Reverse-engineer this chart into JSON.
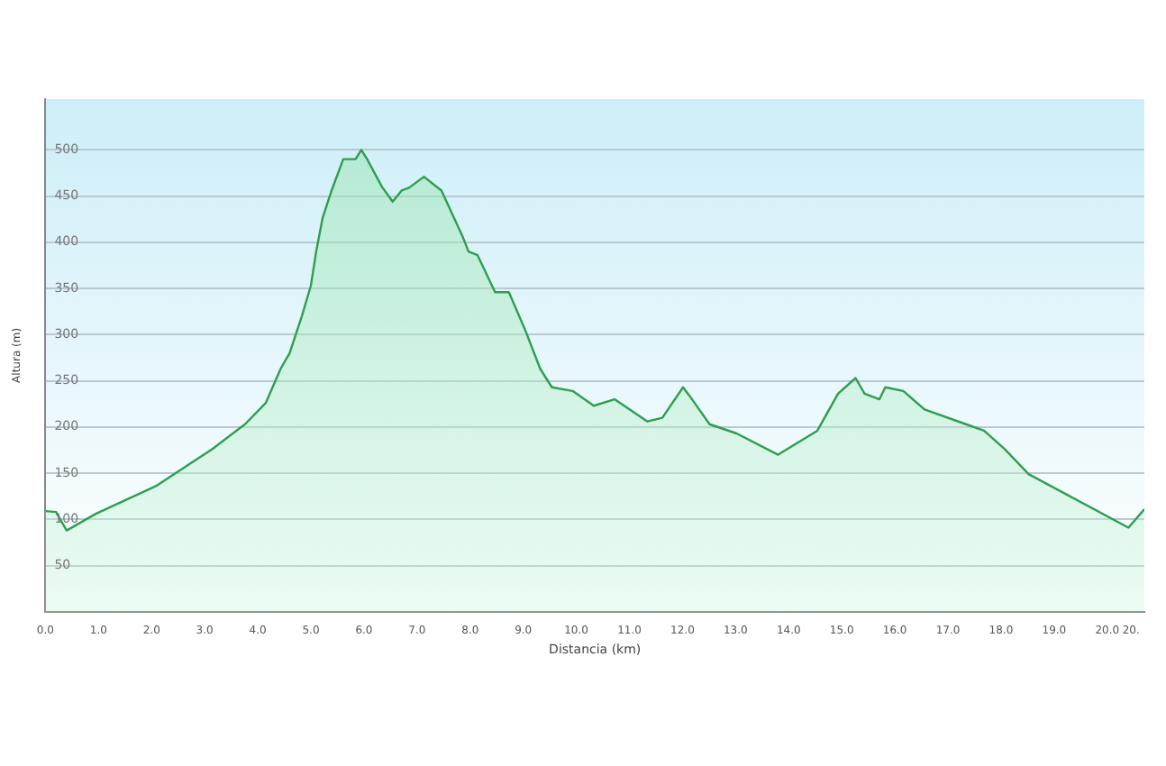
{
  "chart_data": {
    "type": "area",
    "xlabel": "Distancia (km)",
    "ylabel": "Altura (m)",
    "xlim": [
      0,
      20.7
    ],
    "xticks": [
      {
        "value": 0,
        "label": "0.0"
      },
      {
        "value": 1,
        "label": "1.0"
      },
      {
        "value": 2,
        "label": "2.0"
      },
      {
        "value": 3,
        "label": "3.0"
      },
      {
        "value": 4,
        "label": "4.0"
      },
      {
        "value": 5,
        "label": "5.0"
      },
      {
        "value": 6,
        "label": "6.0"
      },
      {
        "value": 7,
        "label": "7.0"
      },
      {
        "value": 8,
        "label": "8.0"
      },
      {
        "value": 9,
        "label": "9.0"
      },
      {
        "value": 10,
        "label": "10.0"
      },
      {
        "value": 11,
        "label": "11.0"
      },
      {
        "value": 12,
        "label": "12.0"
      },
      {
        "value": 13,
        "label": "13.0"
      },
      {
        "value": 14,
        "label": "14.0"
      },
      {
        "value": 15,
        "label": "15.0"
      },
      {
        "value": 16,
        "label": "16.0"
      },
      {
        "value": 17,
        "label": "17.0"
      },
      {
        "value": 18,
        "label": "18.0"
      },
      {
        "value": 19,
        "label": "19.0"
      },
      {
        "value": 20,
        "label": "20.0"
      },
      {
        "value": 20.45,
        "label": "20."
      }
    ],
    "ylim": [
      0,
      555
    ],
    "yticks": [
      50,
      100,
      150,
      200,
      250,
      300,
      350,
      400,
      450,
      500
    ],
    "grid": "y",
    "x": [
      0,
      0.2,
      0.4,
      0.95,
      2.08,
      3.14,
      3.76,
      4.15,
      4.43,
      4.6,
      4.83,
      5.0,
      5.1,
      5.22,
      5.39,
      5.61,
      5.84,
      5.95,
      6.06,
      6.34,
      6.54,
      6.71,
      6.85,
      7.13,
      7.46,
      7.86,
      7.97,
      8.14,
      8.47,
      8.73,
      9.03,
      9.32,
      9.54,
      9.93,
      10.33,
      10.72,
      11.34,
      11.62,
      12.01,
      12.18,
      12.51,
      13.02,
      13.8,
      14.54,
      14.93,
      15.26,
      15.43,
      15.71,
      15.82,
      16.16,
      16.56,
      17.34,
      17.68,
      18.07,
      18.52,
      20.4,
      20.7
    ],
    "series": [
      {
        "color": "#2e9e4f",
        "values": [
          109,
          108,
          88,
          106,
          136,
          176,
          203,
          226,
          263,
          280,
          320,
          353,
          390,
          426,
          456,
          490,
          490,
          500,
          490,
          460,
          444,
          456,
          459,
          471,
          456,
          406,
          390,
          386,
          346,
          346,
          306,
          263,
          243,
          239,
          223,
          230,
          206,
          210,
          243,
          230,
          203,
          193,
          170,
          196,
          236,
          253,
          236,
          230,
          243,
          239,
          219,
          203,
          196,
          176,
          149,
          91,
          111
        ]
      }
    ]
  }
}
